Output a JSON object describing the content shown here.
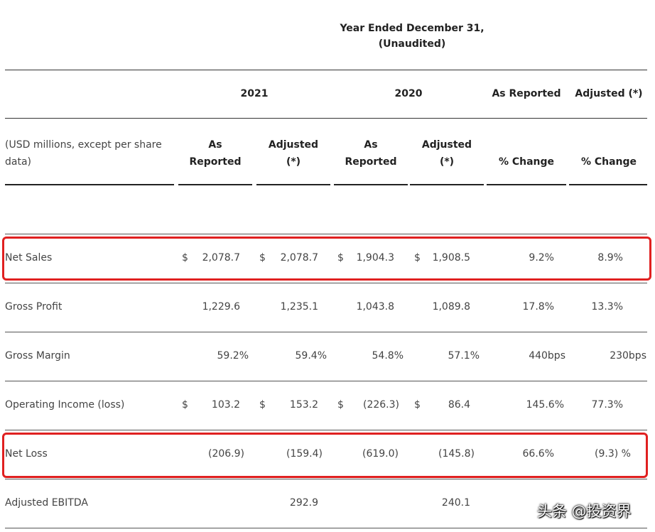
{
  "header": {
    "period_line1": "Year Ended December 31,",
    "period_line2": "(Unaudited)",
    "year_2021": "2021",
    "year_2020": "2020",
    "as_reported_top": "As Reported",
    "adjusted_top": "Adjusted (*)",
    "units_label": "(USD millions, except per share data)",
    "col_2021_reported": [
      "As",
      "Reported"
    ],
    "col_2021_adjusted": [
      "Adjusted",
      "(*)"
    ],
    "col_2020_reported": [
      "As",
      "Reported"
    ],
    "col_2020_adjusted": [
      "Adjusted",
      "(*)"
    ],
    "col_pct_reported": "% Change",
    "col_pct_adjusted": "% Change"
  },
  "rows": [
    {
      "label": "Net Sales",
      "d1": "$",
      "v1": "2,078.7",
      "d2": "$",
      "v2": "2,078.7",
      "d3": "$",
      "v3": "1,904.3",
      "d4": "$",
      "v4": "1,908.5",
      "c1": "9.2%",
      "c2": "8.9%"
    },
    {
      "label": "Gross Profit",
      "v1": "1,229.6",
      "v2": "1,235.1",
      "v3": "1,043.8",
      "v4": "1,089.8",
      "c1": "17.8%",
      "c2": "13.3%"
    },
    {
      "label": "Gross Margin",
      "v1": "59.2%",
      "v2": "59.4%",
      "v3": "54.8%",
      "v4": "57.1%",
      "c1": "440bps",
      "c2": "230bps"
    },
    {
      "label": "Operating Income (loss)",
      "d1": "$",
      "v1": "103.2",
      "d2": "$",
      "v2": "153.2",
      "d3": "$",
      "v3": "(226.3)",
      "d4": "$",
      "v4": "86.4",
      "c1": "145.6%",
      "c2": "77.3%"
    },
    {
      "label": "Net Loss",
      "v1": "(206.9)",
      "v2": "(159.4)",
      "v3": "(619.0)",
      "v4": "(145.8)",
      "c1": "66.6%",
      "c2": "(9.3) %"
    },
    {
      "label": "Adjusted EBITDA",
      "v2": "292.9",
      "v4": "240.1"
    }
  ],
  "highlight_color": "#e02020",
  "watermark": "头条 @投资界"
}
